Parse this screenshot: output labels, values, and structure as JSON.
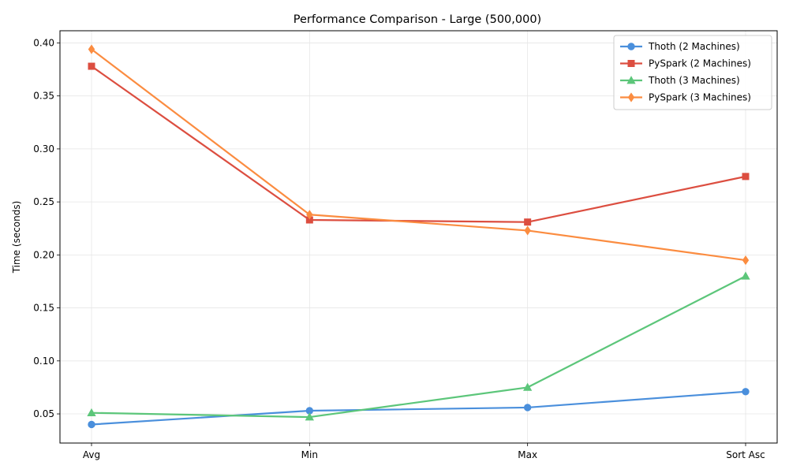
{
  "chart_data": {
    "type": "line",
    "title": "Performance Comparison - Large (500,000)",
    "xlabel": "",
    "ylabel": "Time (seconds)",
    "categories": [
      "Avg",
      "Min",
      "Max",
      "Sort Asc"
    ],
    "ylim": [
      0.0225,
      0.4115
    ],
    "yticks": [
      "0.05",
      "0.10",
      "0.15",
      "0.20",
      "0.25",
      "0.30",
      "0.35",
      "0.40"
    ],
    "grid": true,
    "legend_position": "top-right",
    "series": [
      {
        "name": "Thoth (2 Machines)",
        "color": "#4a8fdc",
        "marker": "circle",
        "values": [
          0.04,
          0.053,
          0.056,
          0.071
        ]
      },
      {
        "name": "PySpark (2 Machines)",
        "color": "#dc4e40",
        "marker": "square",
        "values": [
          0.378,
          0.233,
          0.231,
          0.274
        ]
      },
      {
        "name": "Thoth (3 Machines)",
        "color": "#5cc67a",
        "marker": "triangle",
        "values": [
          0.051,
          0.047,
          0.075,
          0.18
        ]
      },
      {
        "name": "PySpark (3 Machines)",
        "color": "#fb8c40",
        "marker": "diamond",
        "values": [
          0.394,
          0.238,
          0.223,
          0.195
        ]
      }
    ]
  }
}
